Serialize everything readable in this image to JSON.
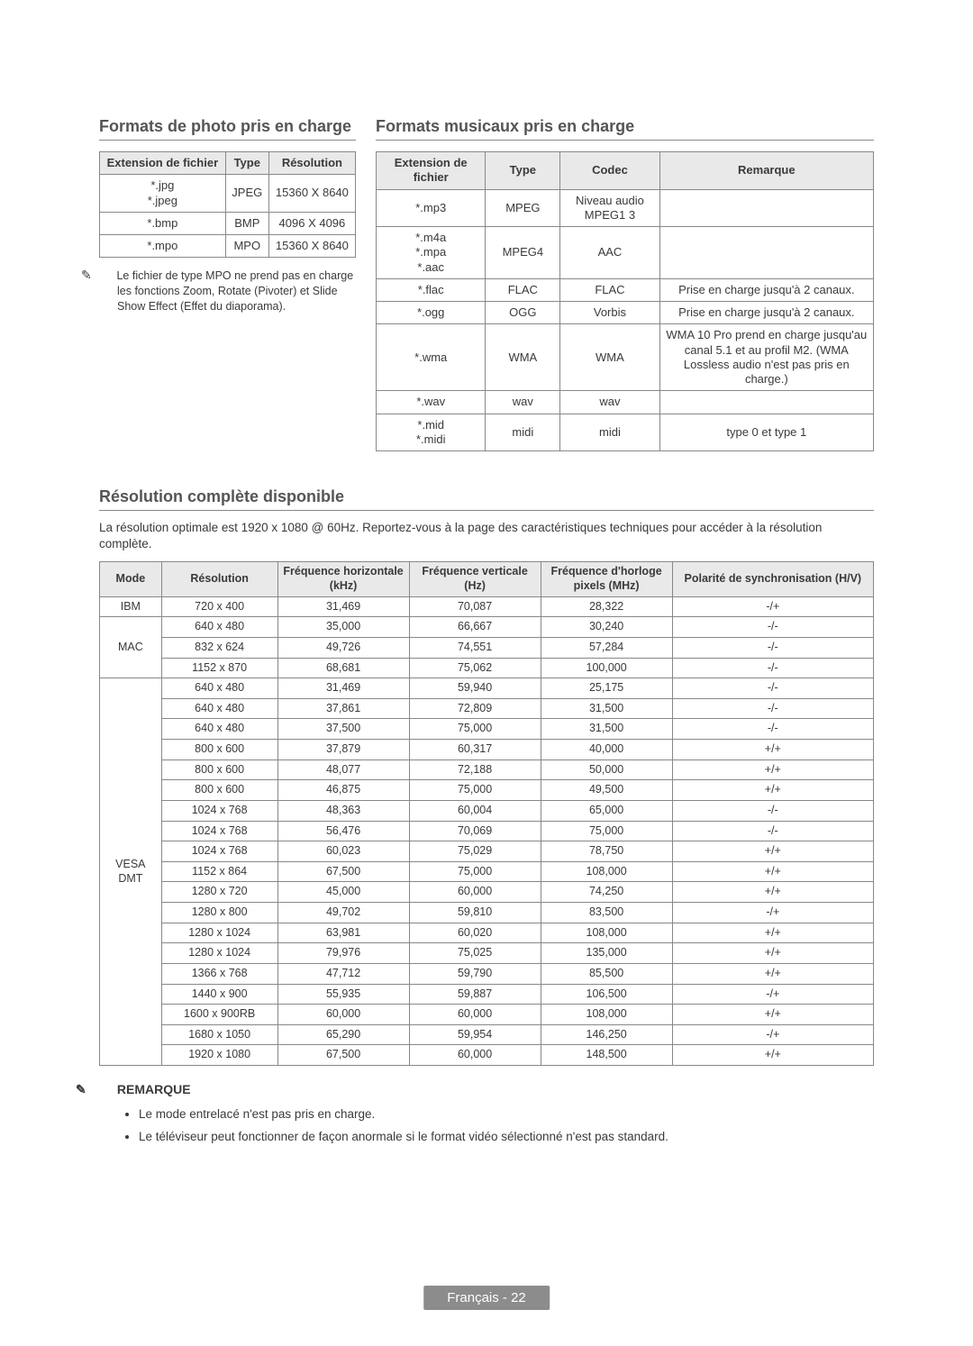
{
  "sections": {
    "photo_title": "Formats de photo pris en charge",
    "music_title": "Formats musicaux pris en charge",
    "resolution_title": "Résolution complète disponible",
    "remarque_title": "REMARQUE"
  },
  "photo_table": {
    "headers": [
      "Extension de fichier",
      "Type",
      "Résolution"
    ],
    "rows": [
      [
        "*.jpg\n*.jpeg",
        "JPEG",
        "15360 X 8640"
      ],
      [
        "*.bmp",
        "BMP",
        "4096 X 4096"
      ],
      [
        "*.mpo",
        "MPO",
        "15360 X 8640"
      ]
    ]
  },
  "mpo_note": "Le fichier de type MPO ne prend pas en charge les fonctions Zoom, Rotate (Pivoter) et Slide Show Effect (Effet du diaporama).",
  "music_table": {
    "headers": [
      "Extension de fichier",
      "Type",
      "Codec",
      "Remarque"
    ],
    "rows": [
      {
        "ext": "*.mp3",
        "type": "MPEG",
        "codec": "Niveau audio MPEG1 3",
        "remark": ""
      },
      {
        "ext": "*.m4a\n*.mpa\n*.aac",
        "type": "MPEG4",
        "codec": "AAC",
        "remark": ""
      },
      {
        "ext": "*.flac",
        "type": "FLAC",
        "codec": "FLAC",
        "remark": "Prise en charge jusqu'à 2 canaux."
      },
      {
        "ext": "*.ogg",
        "type": "OGG",
        "codec": "Vorbis",
        "remark": "Prise en charge jusqu'à 2 canaux."
      },
      {
        "ext": "*.wma",
        "type": "WMA",
        "codec": "WMA",
        "remark": "WMA 10 Pro prend en charge jusqu'au canal 5.1 et au profil M2. (WMA Lossless audio n'est pas pris en charge.)"
      },
      {
        "ext": "*.wav",
        "type": "wav",
        "codec": "wav",
        "remark": ""
      },
      {
        "ext": "*.mid\n*.midi",
        "type": "midi",
        "codec": "midi",
        "remark": "type 0 et type 1"
      }
    ]
  },
  "resolution_intro": "La résolution optimale est 1920 x 1080 @ 60Hz. Reportez-vous à la page des caractéristiques techniques pour accéder à la résolution complète.",
  "resolution_table": {
    "headers": [
      "Mode",
      "Résolution",
      "Fréquence horizontale (kHz)",
      "Fréquence verticale (Hz)",
      "Fréquence d'horloge pixels (MHz)",
      "Polarité de synchronisation (H/V)"
    ],
    "groups": [
      {
        "mode": "IBM",
        "rows": [
          [
            "720 x 400",
            "31,469",
            "70,087",
            "28,322",
            "-/+"
          ]
        ]
      },
      {
        "mode": "MAC",
        "rows": [
          [
            "640 x 480",
            "35,000",
            "66,667",
            "30,240",
            "-/-"
          ],
          [
            "832 x 624",
            "49,726",
            "74,551",
            "57,284",
            "-/-"
          ],
          [
            "1152 x 870",
            "68,681",
            "75,062",
            "100,000",
            "-/-"
          ]
        ]
      },
      {
        "mode": "VESA DMT",
        "rows": [
          [
            "640 x 480",
            "31,469",
            "59,940",
            "25,175",
            "-/-"
          ],
          [
            "640 x 480",
            "37,861",
            "72,809",
            "31,500",
            "-/-"
          ],
          [
            "640 x 480",
            "37,500",
            "75,000",
            "31,500",
            "-/-"
          ],
          [
            "800 x 600",
            "37,879",
            "60,317",
            "40,000",
            "+/+"
          ],
          [
            "800 x 600",
            "48,077",
            "72,188",
            "50,000",
            "+/+"
          ],
          [
            "800 x 600",
            "46,875",
            "75,000",
            "49,500",
            "+/+"
          ],
          [
            "1024 x 768",
            "48,363",
            "60,004",
            "65,000",
            "-/-"
          ],
          [
            "1024 x 768",
            "56,476",
            "70,069",
            "75,000",
            "-/-"
          ],
          [
            "1024 x 768",
            "60,023",
            "75,029",
            "78,750",
            "+/+"
          ],
          [
            "1152 x 864",
            "67,500",
            "75,000",
            "108,000",
            "+/+"
          ],
          [
            "1280 x 720",
            "45,000",
            "60,000",
            "74,250",
            "+/+"
          ],
          [
            "1280 x 800",
            "49,702",
            "59,810",
            "83,500",
            "-/+"
          ],
          [
            "1280 x 1024",
            "63,981",
            "60,020",
            "108,000",
            "+/+"
          ],
          [
            "1280 x 1024",
            "79,976",
            "75,025",
            "135,000",
            "+/+"
          ],
          [
            "1366 x 768",
            "47,712",
            "59,790",
            "85,500",
            "+/+"
          ],
          [
            "1440 x 900",
            "55,935",
            "59,887",
            "106,500",
            "-/+"
          ],
          [
            "1600 x 900RB",
            "60,000",
            "60,000",
            "108,000",
            "+/+"
          ],
          [
            "1680 x 1050",
            "65,290",
            "59,954",
            "146,250",
            "-/+"
          ],
          [
            "1920 x 1080",
            "67,500",
            "60,000",
            "148,500",
            "+/+"
          ]
        ]
      }
    ]
  },
  "remarque_bullets": [
    "Le mode entrelacé n'est pas pris en charge.",
    "Le téléviseur peut fonctionner de façon anormale si le format vidéo sélectionné n'est pas standard."
  ],
  "footer": "Français - 22",
  "note_glyph": "✎",
  "colors": {
    "header_bg": "#e9e9e9",
    "border": "#888888",
    "text": "#3a3a3a",
    "title": "#555555",
    "footer_bg": "#8c8c8c",
    "footer_text": "#ffffff"
  }
}
